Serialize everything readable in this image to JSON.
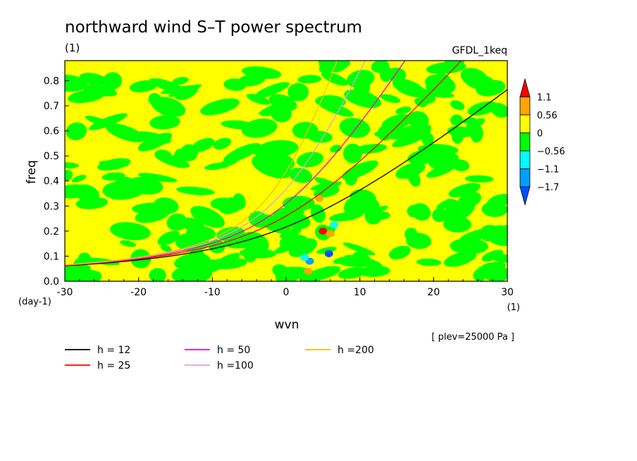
{
  "chart_data": {
    "type": "heatmap",
    "title": "northward wind S–T power spectrum",
    "unit_label": "(1)",
    "model_label": "GFDL_1keq",
    "xlabel": "wvn",
    "ylabel": "freq",
    "x_unit": "(1)",
    "y_unit": "(day-1)",
    "level_note": "[ plev=25000 Pa ]",
    "xlim": [
      -30,
      30
    ],
    "ylim": [
      0,
      0.88
    ],
    "x_ticks": [
      "-30",
      "-20",
      "-10",
      "0",
      "10",
      "20",
      "30"
    ],
    "y_ticks": [
      "0.0",
      "0.1",
      "0.2",
      "0.3",
      "0.4",
      "0.5",
      "0.6",
      "0.7",
      "0.8"
    ],
    "colorbar": {
      "levels": [
        "1.1",
        "0.56",
        "0",
        "−0.56",
        "−1.1",
        "−1.7"
      ],
      "colors": [
        "#ff0000",
        "#ffa500",
        "#ffff00",
        "#00ff00",
        "#00ffff",
        "#00a0ff",
        "#0050ff"
      ]
    },
    "field": {
      "dominant_positive_color": "#ffff00",
      "dominant_negative_color": "#00ff00"
    },
    "series": [
      {
        "name": "h = 12",
        "color": "#000000",
        "h": 12
      },
      {
        "name": "h = 25",
        "color": "#ff0000",
        "h": 25
      },
      {
        "name": "h = 50",
        "color": "#ff00c0",
        "h": 50
      },
      {
        "name": "h =100",
        "color": "#e0a0e0",
        "h": 100
      },
      {
        "name": "h =200",
        "color": "#f0c000",
        "h": 200
      }
    ]
  }
}
